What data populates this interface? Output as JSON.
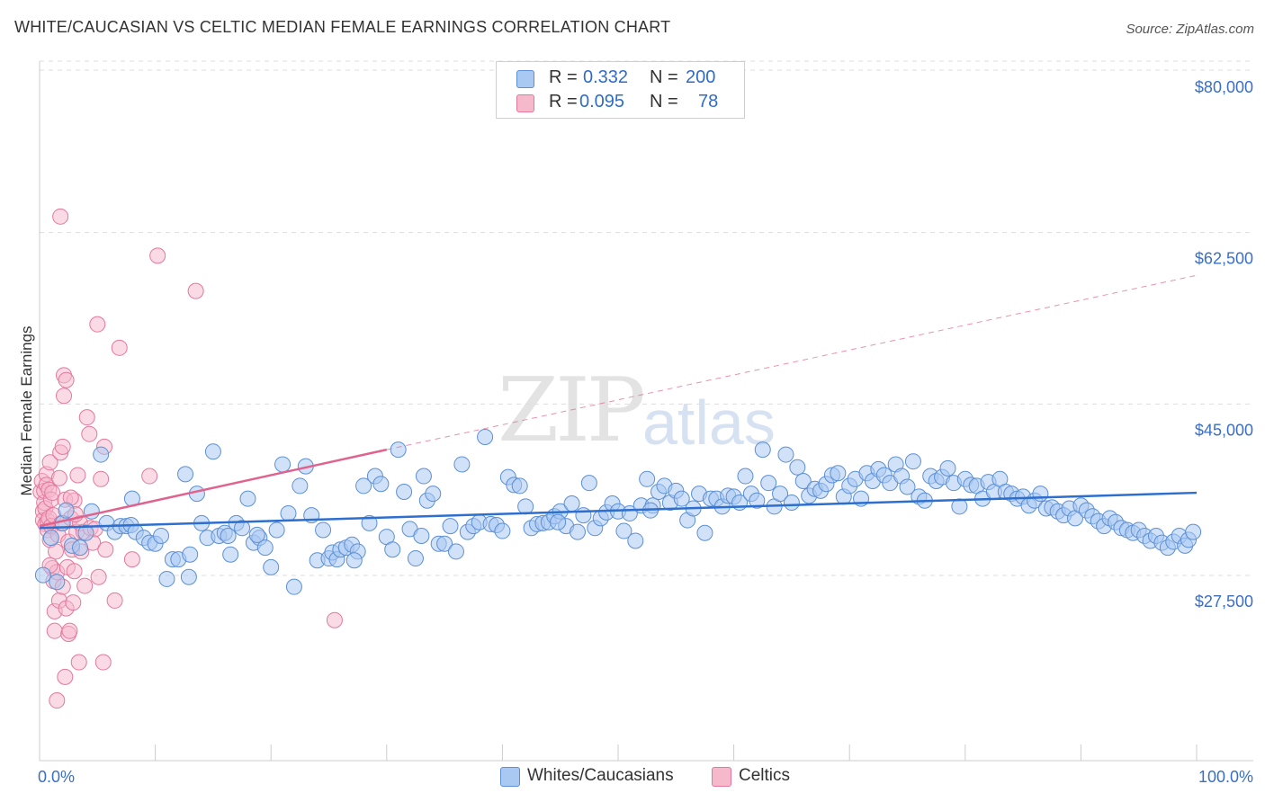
{
  "header": {
    "title": "WHITE/CAUCASIAN VS CELTIC MEDIAN FEMALE EARNINGS CORRELATION CHART",
    "source": "Source: ZipAtlas.com"
  },
  "watermark": {
    "zip": "ZIP",
    "atlas": "atlas"
  },
  "legend": {
    "rows": [
      {
        "r_label": "R =",
        "r_value": "0.332",
        "n_label": "N =",
        "n_value": "200",
        "color": "#a9c8f2"
      },
      {
        "r_label": "R =",
        "r_value": "0.095",
        "n_label": "N =",
        "n_value": "78",
        "color": "#f6b8cb"
      }
    ]
  },
  "bottom_legend": {
    "items": [
      {
        "label": "Whites/Caucasians",
        "color": "#a9c8f2"
      },
      {
        "label": "Celtics",
        "color": "#f6b8cb"
      }
    ]
  },
  "colors": {
    "blue_fill": "#a9c8f2",
    "blue_stroke": "#5b90d6",
    "blue_line": "#2d6fcf",
    "pink_fill": "#f6b8cb",
    "pink_stroke": "#e4789c",
    "pink_line": "#e0628d",
    "grid": "#dddddd",
    "label": "#3a6fc4"
  },
  "chart_data": {
    "type": "scatter",
    "title": "WHITE/CAUCASIAN VS CELTIC MEDIAN FEMALE EARNINGS CORRELATION CHART",
    "xlabel": "",
    "ylabel": "Median Female Earnings",
    "xlim": [
      0,
      100
    ],
    "ylim": [
      12000,
      83500
    ],
    "y_ticks": [
      27500,
      45000,
      62500,
      80000
    ],
    "y_tick_labels": [
      "$27,500",
      "$45,000",
      "$62,500",
      "$80,000"
    ],
    "x_tick_labels": [
      "0.0%",
      "100.0%"
    ],
    "legend_position": "top-center",
    "series": [
      {
        "name": "Whites/Caucasians",
        "R": 0.332,
        "N": 200,
        "trend": {
          "x": [
            0,
            100
          ],
          "y": [
            35000,
            38600
          ]
        },
        "points": [
          [
            0.3,
            30200
          ],
          [
            1.0,
            34000
          ],
          [
            1.5,
            29500
          ],
          [
            2.0,
            35500
          ],
          [
            2.3,
            36800
          ],
          [
            2.8,
            33200
          ],
          [
            3.5,
            33000
          ],
          [
            4.0,
            34500
          ],
          [
            4.5,
            36700
          ],
          [
            5.3,
            42500
          ],
          [
            5.8,
            35500
          ],
          [
            6.5,
            34600
          ],
          [
            7.0,
            35200
          ],
          [
            7.5,
            35200
          ],
          [
            7.9,
            35300
          ],
          [
            8.0,
            38000
          ],
          [
            8.3,
            34600
          ],
          [
            9.0,
            34000
          ],
          [
            9.5,
            33500
          ],
          [
            10.0,
            33400
          ],
          [
            10.5,
            34200
          ],
          [
            11.0,
            29800
          ],
          [
            11.5,
            31800
          ],
          [
            12.0,
            31800
          ],
          [
            12.6,
            40500
          ],
          [
            12.9,
            30000
          ],
          [
            13.0,
            32300
          ],
          [
            13.6,
            38500
          ],
          [
            14.0,
            35500
          ],
          [
            14.5,
            34000
          ],
          [
            15.0,
            42800
          ],
          [
            15.5,
            34200
          ],
          [
            16.0,
            34500
          ],
          [
            16.5,
            32300
          ],
          [
            17.0,
            35500
          ],
          [
            17.5,
            35000
          ],
          [
            18.0,
            38000
          ],
          [
            18.5,
            33500
          ],
          [
            19.0,
            34000
          ],
          [
            19.5,
            33000
          ],
          [
            20.0,
            31000
          ],
          [
            20.5,
            34800
          ],
          [
            21.0,
            41500
          ],
          [
            21.5,
            36500
          ],
          [
            22.0,
            29000
          ],
          [
            22.5,
            39300
          ],
          [
            23.0,
            41300
          ],
          [
            23.5,
            36300
          ],
          [
            24.0,
            31700
          ],
          [
            24.5,
            34800
          ],
          [
            25.0,
            31900
          ],
          [
            25.3,
            32500
          ],
          [
            25.7,
            31800
          ],
          [
            26.0,
            32800
          ],
          [
            26.5,
            33000
          ],
          [
            27.0,
            33300
          ],
          [
            27.5,
            32600
          ],
          [
            28.0,
            39300
          ],
          [
            28.5,
            35500
          ],
          [
            29.0,
            40300
          ],
          [
            29.5,
            39500
          ],
          [
            30.0,
            34100
          ],
          [
            30.5,
            32800
          ],
          [
            31.0,
            43000
          ],
          [
            31.5,
            38700
          ],
          [
            32.0,
            34900
          ],
          [
            32.5,
            31900
          ],
          [
            33.0,
            34200
          ],
          [
            33.5,
            37800
          ],
          [
            34.0,
            38500
          ],
          [
            34.5,
            33400
          ],
          [
            35.0,
            33400
          ],
          [
            35.5,
            35200
          ],
          [
            36.0,
            32600
          ],
          [
            36.5,
            41500
          ],
          [
            37.0,
            34600
          ],
          [
            37.5,
            35200
          ],
          [
            38.0,
            35600
          ],
          [
            38.5,
            44300
          ],
          [
            39.0,
            35400
          ],
          [
            39.5,
            35300
          ],
          [
            40.0,
            34700
          ],
          [
            40.5,
            40200
          ],
          [
            41.0,
            39400
          ],
          [
            41.5,
            39300
          ],
          [
            42.0,
            37200
          ],
          [
            42.5,
            35000
          ],
          [
            43.0,
            35400
          ],
          [
            43.5,
            35500
          ],
          [
            44.0,
            35600
          ],
          [
            44.5,
            36200
          ],
          [
            45.0,
            36700
          ],
          [
            45.5,
            35200
          ],
          [
            46.0,
            37500
          ],
          [
            46.5,
            34600
          ],
          [
            47.0,
            36300
          ],
          [
            47.5,
            39600
          ],
          [
            48.0,
            35000
          ],
          [
            48.5,
            36000
          ],
          [
            49.0,
            36600
          ],
          [
            49.5,
            37500
          ],
          [
            50.0,
            36700
          ],
          [
            50.5,
            34700
          ],
          [
            51.0,
            36500
          ],
          [
            51.5,
            33700
          ],
          [
            52.0,
            37300
          ],
          [
            52.5,
            40000
          ],
          [
            53.0,
            37300
          ],
          [
            53.5,
            38700
          ],
          [
            54.0,
            39300
          ],
          [
            54.5,
            37600
          ],
          [
            55.0,
            38800
          ],
          [
            55.5,
            38000
          ],
          [
            56.0,
            35800
          ],
          [
            56.5,
            37000
          ],
          [
            57.0,
            38500
          ],
          [
            57.5,
            34500
          ],
          [
            58.0,
            38000
          ],
          [
            58.5,
            38000
          ],
          [
            59.0,
            37200
          ],
          [
            59.5,
            38300
          ],
          [
            60.0,
            38200
          ],
          [
            60.5,
            37600
          ],
          [
            61.0,
            40300
          ],
          [
            61.5,
            38500
          ],
          [
            62.0,
            37800
          ],
          [
            62.5,
            43000
          ],
          [
            63.0,
            39600
          ],
          [
            63.5,
            37200
          ],
          [
            64.0,
            38500
          ],
          [
            64.5,
            42500
          ],
          [
            65.0,
            37600
          ],
          [
            65.5,
            41200
          ],
          [
            66.0,
            39800
          ],
          [
            66.5,
            38300
          ],
          [
            67.0,
            39000
          ],
          [
            67.5,
            38800
          ],
          [
            68.0,
            39500
          ],
          [
            68.5,
            40400
          ],
          [
            69.0,
            40600
          ],
          [
            69.5,
            38200
          ],
          [
            70.0,
            39300
          ],
          [
            70.5,
            40000
          ],
          [
            71.0,
            38000
          ],
          [
            71.5,
            40600
          ],
          [
            72.0,
            39800
          ],
          [
            72.5,
            41000
          ],
          [
            73.0,
            40400
          ],
          [
            73.5,
            39600
          ],
          [
            74.0,
            41500
          ],
          [
            74.5,
            40300
          ],
          [
            75.0,
            39200
          ],
          [
            75.5,
            41800
          ],
          [
            76.0,
            38200
          ],
          [
            76.5,
            37800
          ],
          [
            77.0,
            40300
          ],
          [
            77.5,
            39800
          ],
          [
            78.0,
            40200
          ],
          [
            78.5,
            41100
          ],
          [
            79.0,
            39600
          ],
          [
            79.5,
            37200
          ],
          [
            80.0,
            40000
          ],
          [
            80.5,
            39400
          ],
          [
            81.0,
            39300
          ],
          [
            81.5,
            38000
          ],
          [
            82.0,
            39700
          ],
          [
            82.5,
            38700
          ],
          [
            83.0,
            40000
          ],
          [
            83.5,
            38700
          ],
          [
            84.0,
            38500
          ],
          [
            84.5,
            38000
          ],
          [
            85.0,
            38200
          ],
          [
            85.5,
            37300
          ],
          [
            86.0,
            37800
          ],
          [
            86.5,
            38500
          ],
          [
            87.0,
            37000
          ],
          [
            87.5,
            37100
          ],
          [
            88.0,
            36700
          ],
          [
            88.5,
            36300
          ],
          [
            89.0,
            37000
          ],
          [
            89.5,
            36000
          ],
          [
            90.0,
            37300
          ],
          [
            90.5,
            36800
          ],
          [
            91.0,
            36200
          ],
          [
            91.5,
            35700
          ],
          [
            92.0,
            35200
          ],
          [
            92.5,
            36000
          ],
          [
            93.0,
            35600
          ],
          [
            93.5,
            35000
          ],
          [
            94.0,
            34800
          ],
          [
            94.5,
            34500
          ],
          [
            95.0,
            34800
          ],
          [
            95.5,
            34200
          ],
          [
            96.0,
            33700
          ],
          [
            96.5,
            34200
          ],
          [
            97.0,
            33500
          ],
          [
            97.5,
            33000
          ],
          [
            98.0,
            33600
          ],
          [
            98.5,
            34200
          ],
          [
            99.0,
            33200
          ],
          [
            99.3,
            33800
          ],
          [
            99.7,
            34600
          ],
          [
            16.3,
            34200
          ],
          [
            18.8,
            34300
          ],
          [
            27.2,
            31700
          ],
          [
            33.2,
            40300
          ],
          [
            44.8,
            35600
          ],
          [
            52.8,
            36800
          ]
        ]
      },
      {
        "name": "Celtics",
        "R": 0.095,
        "N": 78,
        "trend": {
          "x": [
            0,
            30
          ],
          "y": [
            35200,
            43000
          ]
        },
        "trend_extension": {
          "x": [
            30,
            100
          ],
          "y": [
            43000,
            60800
          ]
        },
        "points": [
          [
            0.1,
            38700
          ],
          [
            0.2,
            39800
          ],
          [
            0.3,
            36700
          ],
          [
            0.3,
            35800
          ],
          [
            0.4,
            37600
          ],
          [
            0.4,
            38800
          ],
          [
            0.5,
            35400
          ],
          [
            0.5,
            37000
          ],
          [
            0.6,
            40500
          ],
          [
            0.6,
            39400
          ],
          [
            0.7,
            34800
          ],
          [
            0.7,
            35700
          ],
          [
            0.8,
            38900
          ],
          [
            0.8,
            36000
          ],
          [
            0.9,
            41700
          ],
          [
            0.9,
            33800
          ],
          [
            1.0,
            37900
          ],
          [
            1.0,
            35200
          ],
          [
            1.1,
            30900
          ],
          [
            1.1,
            38600
          ],
          [
            1.2,
            36300
          ],
          [
            1.2,
            29600
          ],
          [
            1.3,
            26500
          ],
          [
            1.3,
            24500
          ],
          [
            1.4,
            32600
          ],
          [
            1.5,
            17400
          ],
          [
            1.5,
            30500
          ],
          [
            1.6,
            34300
          ],
          [
            1.7,
            40100
          ],
          [
            1.7,
            27600
          ],
          [
            1.8,
            66800
          ],
          [
            1.8,
            42700
          ],
          [
            1.9,
            35500
          ],
          [
            2.0,
            43300
          ],
          [
            2.0,
            29000
          ],
          [
            2.1,
            50600
          ],
          [
            2.1,
            48500
          ],
          [
            2.2,
            37900
          ],
          [
            2.2,
            19800
          ],
          [
            2.3,
            50100
          ],
          [
            2.3,
            26800
          ],
          [
            2.4,
            31000
          ],
          [
            2.5,
            33600
          ],
          [
            2.5,
            24200
          ],
          [
            2.6,
            24500
          ],
          [
            2.7,
            36000
          ],
          [
            2.8,
            32800
          ],
          [
            2.9,
            27400
          ],
          [
            3.0,
            37800
          ],
          [
            3.0,
            30600
          ],
          [
            3.2,
            34600
          ],
          [
            3.3,
            40400
          ],
          [
            3.4,
            21300
          ],
          [
            3.5,
            35500
          ],
          [
            3.6,
            32600
          ],
          [
            3.8,
            34600
          ],
          [
            3.9,
            29100
          ],
          [
            4.1,
            46300
          ],
          [
            4.3,
            44600
          ],
          [
            4.4,
            35000
          ],
          [
            4.6,
            33500
          ],
          [
            5.0,
            55800
          ],
          [
            5.1,
            30000
          ],
          [
            5.3,
            40000
          ],
          [
            5.5,
            21300
          ],
          [
            5.6,
            43300
          ],
          [
            5.7,
            32800
          ],
          [
            6.5,
            27600
          ],
          [
            6.9,
            53400
          ],
          [
            8.0,
            31800
          ],
          [
            9.5,
            40300
          ],
          [
            10.2,
            62800
          ],
          [
            13.5,
            59200
          ],
          [
            25.5,
            25600
          ],
          [
            4.8,
            34900
          ],
          [
            3.1,
            36400
          ],
          [
            0.9,
            31200
          ],
          [
            2.7,
            38100
          ]
        ]
      }
    ]
  }
}
